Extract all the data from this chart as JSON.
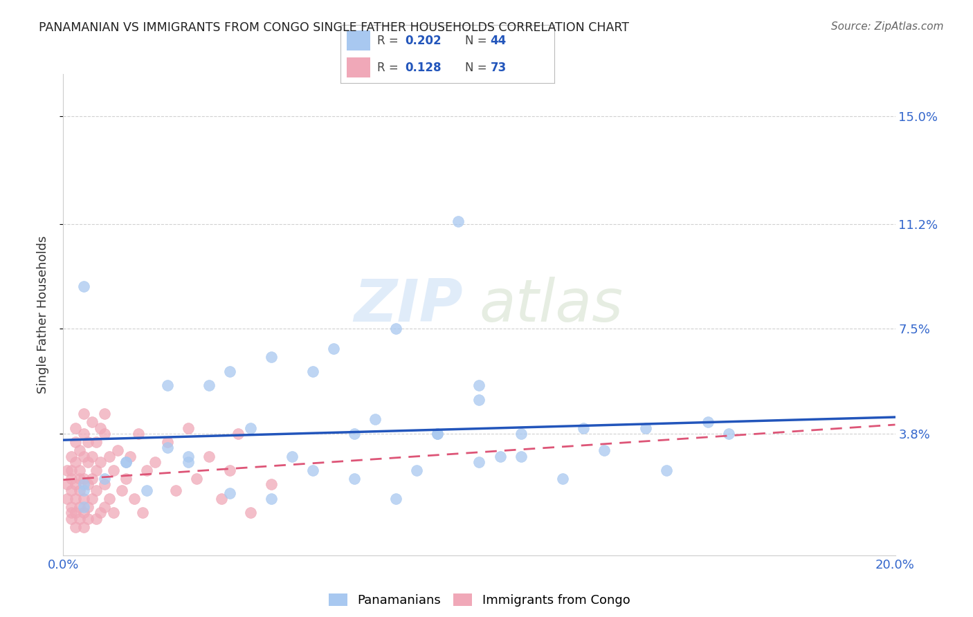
{
  "title": "PANAMANIAN VS IMMIGRANTS FROM CONGO SINGLE FATHER HOUSEHOLDS CORRELATION CHART",
  "source": "Source: ZipAtlas.com",
  "ylabel": "Single Father Households",
  "xlim": [
    0.0,
    0.2
  ],
  "ylim": [
    -0.005,
    0.165
  ],
  "ytick_labels": [
    "3.8%",
    "7.5%",
    "11.2%",
    "15.0%"
  ],
  "ytick_values": [
    0.038,
    0.075,
    0.112,
    0.15
  ],
  "xtick_labels": [
    "0.0%",
    "20.0%"
  ],
  "xtick_values": [
    0.0,
    0.2
  ],
  "blue_color": "#a8c8f0",
  "pink_color": "#f0a8b8",
  "blue_line_color": "#2255bb",
  "pink_line_color": "#dd5577",
  "background_color": "#ffffff",
  "grid_color": "#cccccc",
  "blue_scatter_x": [
    0.005,
    0.015,
    0.025,
    0.03,
    0.035,
    0.04,
    0.045,
    0.05,
    0.055,
    0.06,
    0.065,
    0.07,
    0.075,
    0.08,
    0.085,
    0.09,
    0.095,
    0.1,
    0.1,
    0.105,
    0.11,
    0.12,
    0.125,
    0.13,
    0.14,
    0.145,
    0.155,
    0.16,
    0.005,
    0.01,
    0.015,
    0.02,
    0.025,
    0.03,
    0.04,
    0.05,
    0.06,
    0.07,
    0.08,
    0.09,
    0.1,
    0.11,
    0.005,
    0.005
  ],
  "blue_scatter_y": [
    0.09,
    0.028,
    0.055,
    0.03,
    0.055,
    0.06,
    0.04,
    0.065,
    0.03,
    0.06,
    0.068,
    0.038,
    0.043,
    0.075,
    0.025,
    0.038,
    0.113,
    0.055,
    0.05,
    0.03,
    0.038,
    0.022,
    0.04,
    0.032,
    0.04,
    0.025,
    0.042,
    0.038,
    0.02,
    0.022,
    0.028,
    0.018,
    0.033,
    0.028,
    0.017,
    0.015,
    0.025,
    0.022,
    0.015,
    0.038,
    0.028,
    0.03,
    0.012,
    0.018
  ],
  "pink_scatter_x": [
    0.001,
    0.001,
    0.001,
    0.002,
    0.002,
    0.002,
    0.002,
    0.002,
    0.002,
    0.002,
    0.003,
    0.003,
    0.003,
    0.003,
    0.003,
    0.003,
    0.003,
    0.004,
    0.004,
    0.004,
    0.004,
    0.004,
    0.004,
    0.005,
    0.005,
    0.005,
    0.005,
    0.005,
    0.005,
    0.005,
    0.006,
    0.006,
    0.006,
    0.006,
    0.006,
    0.007,
    0.007,
    0.007,
    0.007,
    0.008,
    0.008,
    0.008,
    0.008,
    0.009,
    0.009,
    0.009,
    0.01,
    0.01,
    0.01,
    0.01,
    0.011,
    0.011,
    0.012,
    0.012,
    0.013,
    0.014,
    0.015,
    0.016,
    0.017,
    0.018,
    0.019,
    0.02,
    0.022,
    0.025,
    0.027,
    0.03,
    0.032,
    0.035,
    0.038,
    0.04,
    0.042,
    0.045,
    0.05
  ],
  "pink_scatter_y": [
    0.02,
    0.015,
    0.025,
    0.018,
    0.012,
    0.022,
    0.03,
    0.025,
    0.01,
    0.008,
    0.028,
    0.035,
    0.02,
    0.015,
    0.04,
    0.01,
    0.005,
    0.022,
    0.018,
    0.032,
    0.012,
    0.008,
    0.025,
    0.038,
    0.03,
    0.022,
    0.015,
    0.045,
    0.01,
    0.005,
    0.028,
    0.02,
    0.035,
    0.012,
    0.008,
    0.03,
    0.022,
    0.042,
    0.015,
    0.035,
    0.025,
    0.018,
    0.008,
    0.04,
    0.028,
    0.01,
    0.038,
    0.045,
    0.02,
    0.012,
    0.03,
    0.015,
    0.025,
    0.01,
    0.032,
    0.018,
    0.022,
    0.03,
    0.015,
    0.038,
    0.01,
    0.025,
    0.028,
    0.035,
    0.018,
    0.04,
    0.022,
    0.03,
    0.015,
    0.025,
    0.038,
    0.01,
    0.02
  ]
}
